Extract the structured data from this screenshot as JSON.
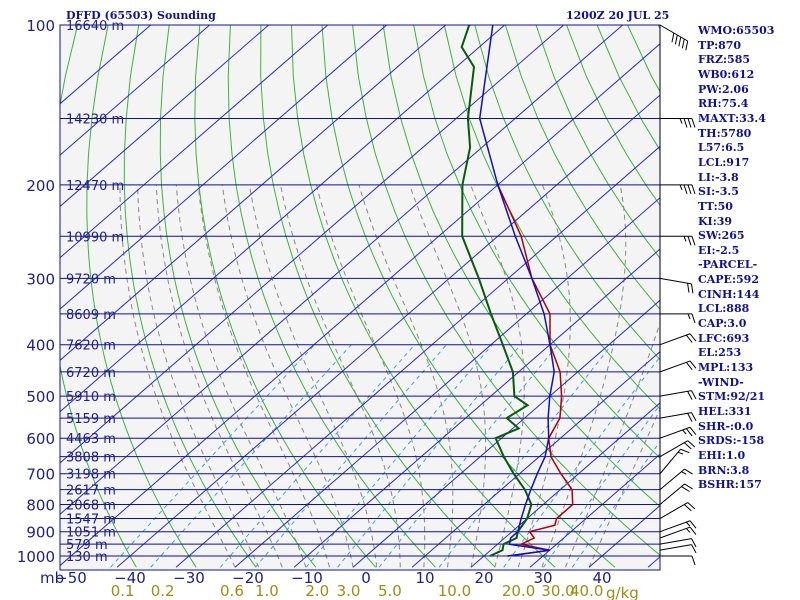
{
  "header": {
    "station": "DFFD (65503) Sounding",
    "time": "1200Z 20 JUL 25"
  },
  "indices": [
    "WMO:65503",
    "TP:870",
    "FRZ:585",
    "WB0:612",
    "PW:2.06",
    "RH:75.4",
    "MAXT:33.4",
    "TH:5780",
    "L57:6.5",
    "LCL:917",
    "LI:-3.8",
    "SI:-3.5",
    "TT:50",
    "KI:39",
    "SW:265",
    "EI:-2.5",
    "-PARCEL-",
    "CAPE:592",
    "CINH:144",
    "LCL:888",
    "CAP:3.0",
    "LFC:693",
    "EL:253",
    "MPL:133",
    "-WIND-",
    "STM:92/21",
    "HEL:331",
    "SHR-:0.0",
    "SRDS:-158",
    "EHI:1.0",
    "BRN:3.8",
    "BSHR:157"
  ],
  "colors": {
    "frame": "#10109a",
    "isobar": "#10109a",
    "isotherm": "#2a2acb",
    "dry_adiabat": "#3cb43c",
    "moist_adiabat": "#888888",
    "mixing_ratio": "#3ca0e0",
    "temperature": "#b00000",
    "dewpoint": "#0a5a0a",
    "parcel": "#1010c0",
    "mixing_label": "#a08c14",
    "axis_text": "#1e1e8c"
  },
  "chart_data": {
    "type": "line",
    "title": "",
    "xlabel": "",
    "ylabel": "mb",
    "y_scale": "log",
    "y_reversed": true,
    "ylim": [
      1000,
      100
    ],
    "xlim": [
      -50,
      50
    ],
    "x_ticks": [
      -50,
      -40,
      -30,
      -20,
      -10,
      0,
      10,
      20,
      30,
      40
    ],
    "pressure_ticks": [
      100,
      200,
      300,
      400,
      500,
      600,
      700,
      800,
      900,
      1000
    ],
    "height_labels": [
      {
        "p": 100,
        "label": "16640 m"
      },
      {
        "p": 150,
        "label": "14230 m"
      },
      {
        "p": 200,
        "label": "12470 m"
      },
      {
        "p": 250,
        "label": "10990 m"
      },
      {
        "p": 300,
        "label": "9720 m"
      },
      {
        "p": 350,
        "label": "8609 m"
      },
      {
        "p": 400,
        "label": "7620 m"
      },
      {
        "p": 450,
        "label": "6720 m"
      },
      {
        "p": 500,
        "label": "5910 m"
      },
      {
        "p": 550,
        "label": "5159 m"
      },
      {
        "p": 600,
        "label": "4463 m"
      },
      {
        "p": 650,
        "label": "3808 m"
      },
      {
        "p": 700,
        "label": "3198 m"
      },
      {
        "p": 750,
        "label": "2617 m"
      },
      {
        "p": 800,
        "label": "2068 m"
      },
      {
        "p": 850,
        "label": "1547 m"
      },
      {
        "p": 900,
        "label": "1051 m"
      },
      {
        "p": 950,
        "label": "579 m"
      },
      {
        "p": 1000,
        "label": "130 m"
      }
    ],
    "mixing_ratio_labels": [
      {
        "w": 0.1,
        "label": "0.1"
      },
      {
        "w": 0.2,
        "label": "0.2"
      },
      {
        "w": 0.6,
        "label": "0.6"
      },
      {
        "w": 1.0,
        "label": "1.0"
      },
      {
        "w": 2.0,
        "label": "2.0"
      },
      {
        "w": 3.0,
        "label": "3.0"
      },
      {
        "w": 5.0,
        "label": "5.0"
      },
      {
        "w": 10.0,
        "label": "10.0"
      },
      {
        "w": 20.0,
        "label": "20.0"
      },
      {
        "w": 30.0,
        "label": "30.0"
      },
      {
        "w": 40.0,
        "label": "40.0"
      }
    ],
    "mixing_unit": "g/kg",
    "series": [
      {
        "key": "temperature",
        "points": [
          [
            1000,
            24
          ],
          [
            975,
            30
          ],
          [
            950,
            24
          ],
          [
            925,
            25
          ],
          [
            900,
            23
          ],
          [
            875,
            26
          ],
          [
            850,
            25
          ],
          [
            800,
            25
          ],
          [
            750,
            22
          ],
          [
            700,
            17
          ],
          [
            650,
            12
          ],
          [
            600,
            8
          ],
          [
            550,
            6
          ],
          [
            500,
            2
          ],
          [
            450,
            -3
          ],
          [
            400,
            -10
          ],
          [
            350,
            -16
          ],
          [
            300,
            -26
          ],
          [
            250,
            -36
          ],
          [
            200,
            -50
          ]
        ]
      },
      {
        "key": "dewpoint",
        "points": [
          [
            1000,
            21
          ],
          [
            975,
            22
          ],
          [
            950,
            21
          ],
          [
            925,
            22
          ],
          [
            900,
            21
          ],
          [
            850,
            20
          ],
          [
            800,
            18
          ],
          [
            750,
            14
          ],
          [
            700,
            9
          ],
          [
            650,
            4
          ],
          [
            600,
            -1
          ],
          [
            575,
            1
          ],
          [
            550,
            -3
          ],
          [
            520,
            -2
          ],
          [
            500,
            -6
          ],
          [
            450,
            -11
          ],
          [
            400,
            -18
          ],
          [
            350,
            -26
          ],
          [
            300,
            -35
          ],
          [
            250,
            -46
          ],
          [
            200,
            -56
          ],
          [
            170,
            -62
          ],
          [
            150,
            -68
          ],
          [
            120,
            -77
          ],
          [
            110,
            -83
          ],
          [
            100,
            -86
          ],
          [
            97,
            -82
          ]
        ]
      },
      {
        "key": "parcel",
        "points": [
          [
            1000,
            24
          ],
          [
            975,
            30
          ],
          [
            950,
            22
          ],
          [
            925,
            21
          ],
          [
            900,
            21
          ],
          [
            850,
            19
          ],
          [
            800,
            17
          ],
          [
            750,
            15
          ],
          [
            700,
            13
          ],
          [
            650,
            11
          ],
          [
            600,
            8
          ],
          [
            550,
            4
          ],
          [
            500,
            0
          ],
          [
            450,
            -4
          ],
          [
            400,
            -10
          ],
          [
            350,
            -17
          ],
          [
            300,
            -26
          ],
          [
            250,
            -37
          ],
          [
            200,
            -50
          ],
          [
            150,
            -66
          ],
          [
            100,
            -82
          ]
        ]
      }
    ],
    "wind_barbs": [
      {
        "p": 1000,
        "dir": 90,
        "spd": 10
      },
      {
        "p": 975,
        "dir": 80,
        "spd": 10
      },
      {
        "p": 950,
        "dir": 80,
        "spd": 10
      },
      {
        "p": 925,
        "dir": 70,
        "spd": 15
      },
      {
        "p": 900,
        "dir": 70,
        "spd": 15
      },
      {
        "p": 850,
        "dir": 60,
        "spd": 20
      },
      {
        "p": 800,
        "dir": 50,
        "spd": 20
      },
      {
        "p": 750,
        "dir": 50,
        "spd": 15
      },
      {
        "p": 700,
        "dir": 40,
        "spd": 15
      },
      {
        "p": 650,
        "dir": 60,
        "spd": 20
      },
      {
        "p": 600,
        "dir": 70,
        "spd": 25
      },
      {
        "p": 550,
        "dir": 80,
        "spd": 20
      },
      {
        "p": 500,
        "dir": 80,
        "spd": 20
      },
      {
        "p": 450,
        "dir": 70,
        "spd": 20
      },
      {
        "p": 400,
        "dir": 70,
        "spd": 20
      },
      {
        "p": 350,
        "dir": 90,
        "spd": 15
      },
      {
        "p": 300,
        "dir": 100,
        "spd": 20
      },
      {
        "p": 250,
        "dir": 90,
        "spd": 25
      },
      {
        "p": 200,
        "dir": 90,
        "spd": 35
      },
      {
        "p": 150,
        "dir": 90,
        "spd": 35
      },
      {
        "p": 100,
        "dir": 120,
        "spd": 50
      }
    ]
  }
}
